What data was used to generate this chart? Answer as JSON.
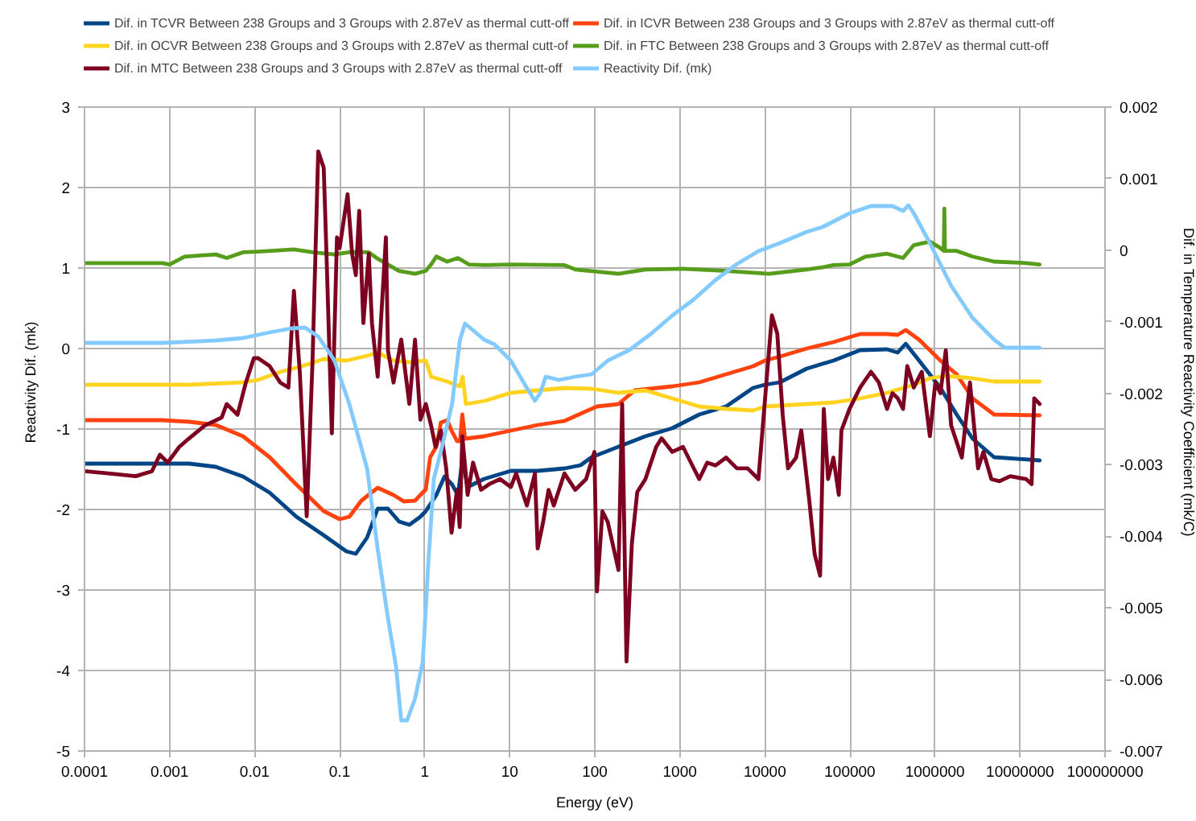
{
  "chart_data": {
    "type": "line",
    "xlabel": "Energy (eV)",
    "ylabel": "Reactivity Dif. (mk)",
    "y2label": "Dif. in Temperature Reactivity Coefficient (mk/C)",
    "log": "x",
    "grid": true,
    "legend": "top",
    "line_style": "solid",
    "xlim": [
      0.0001,
      100000000
    ],
    "xticks": [
      0.0001,
      0.001,
      0.01,
      0.1,
      1,
      10,
      100,
      1000,
      10000,
      100000,
      1000000,
      10000000,
      100000000
    ],
    "ylim": [
      -5,
      3
    ],
    "yticks": [
      -5,
      -4,
      -3,
      -2,
      -1,
      0,
      1,
      2,
      3
    ],
    "y2lim": [
      -0.007,
      0.002
    ],
    "y2ticks": [
      -0.007,
      -0.006,
      -0.005,
      -0.004,
      -0.003,
      -0.002,
      -0.001,
      0,
      0.001,
      0.002
    ],
    "series": [
      {
        "name": "Dif. in TCVR Between 238 Groups and 3 Groups with 2.87eV as thermal cutt-off",
        "color": "#004586",
        "x": [
          0.0001,
          0.0017,
          0.0035,
          0.0073,
          0.015,
          0.031,
          0.065,
          0.12,
          0.155,
          0.21,
          0.28,
          0.37,
          0.5,
          0.66,
          0.89,
          1.03,
          1.37,
          1.71,
          2.1,
          2.46,
          2.77,
          3.2,
          5,
          10.3,
          21.3,
          44,
          68,
          92,
          190,
          394,
          815,
          1690,
          3500,
          7260,
          10000,
          15000,
          31000,
          64000,
          132000,
          273000,
          365000,
          453000,
          651000,
          1160000,
          1800000,
          2770000,
          4950000,
          17000000
        ],
        "values": [
          -1.43,
          -1.43,
          -1.47,
          -1.59,
          -1.79,
          -2.09,
          -2.32,
          -2.52,
          -2.55,
          -2.35,
          -1.99,
          -1.99,
          -2.15,
          -2.19,
          -2.09,
          -2.02,
          -1.82,
          -1.59,
          -1.69,
          -1.82,
          -1.39,
          -1.72,
          -1.62,
          -1.52,
          -1.52,
          -1.49,
          -1.45,
          -1.35,
          -1.22,
          -1.09,
          -0.99,
          -0.82,
          -0.72,
          -0.49,
          -0.45,
          -0.42,
          -0.25,
          -0.15,
          -0.02,
          -0.01,
          -0.05,
          0.06,
          -0.15,
          -0.49,
          -0.82,
          -1.12,
          -1.35,
          -1.39
        ]
      },
      {
        "name": "Dif. in ICVR Between 238 Groups and 3 Groups with 2.87eV as thermal cutt-off",
        "color": "#ff420e",
        "x": [
          0.0001,
          0.00082,
          0.0017,
          0.0035,
          0.0073,
          0.015,
          0.031,
          0.065,
          0.1,
          0.13,
          0.18,
          0.28,
          0.43,
          0.57,
          0.77,
          1.03,
          1.16,
          1.37,
          1.55,
          1.84,
          2.07,
          2.4,
          2.6,
          2.77,
          2.98,
          5,
          10.3,
          21.3,
          44,
          68,
          106,
          190,
          294,
          815,
          1690,
          3500,
          7260,
          10000,
          15000,
          31000,
          64000,
          132000,
          273000,
          365000,
          453000,
          651000,
          1160000,
          1800000,
          2770000,
          4950000,
          17000000
        ],
        "values": [
          -0.89,
          -0.89,
          -0.91,
          -0.95,
          -1.09,
          -1.35,
          -1.69,
          -2.02,
          -2.12,
          -2.09,
          -1.89,
          -1.73,
          -1.82,
          -1.9,
          -1.89,
          -1.75,
          -1.35,
          -1.22,
          -0.92,
          -0.89,
          -1.02,
          -1.15,
          -1.15,
          -0.82,
          -1.12,
          -1.09,
          -1.02,
          -0.95,
          -0.9,
          -0.81,
          -0.72,
          -0.69,
          -0.52,
          -0.47,
          -0.42,
          -0.32,
          -0.22,
          -0.15,
          -0.1,
          0.0,
          0.08,
          0.18,
          0.18,
          0.17,
          0.23,
          0.11,
          -0.15,
          -0.32,
          -0.62,
          -0.82,
          -0.83
        ]
      },
      {
        "name": "Dif. in OCVR Between 238 Groups and 3 Groups with 2.87eV as thermal cutt-of",
        "color": "#ffd320",
        "x": [
          0.0001,
          0.0017,
          0.0073,
          0.011,
          0.02,
          0.036,
          0.065,
          0.12,
          0.21,
          0.28,
          0.43,
          0.66,
          1.03,
          1.19,
          1.84,
          2.6,
          2.8,
          3.05,
          5.1,
          10.3,
          21.3,
          44,
          92,
          190,
          394,
          815,
          1690,
          3500,
          7260,
          10000,
          31000,
          64000,
          132000,
          273000,
          564000,
          871000,
          1340000,
          2770000,
          4950000,
          17000000
        ],
        "values": [
          -0.45,
          -0.45,
          -0.42,
          -0.39,
          -0.29,
          -0.22,
          -0.13,
          -0.15,
          -0.09,
          -0.05,
          -0.15,
          -0.17,
          -0.15,
          -0.35,
          -0.41,
          -0.47,
          -0.35,
          -0.69,
          -0.65,
          -0.55,
          -0.52,
          -0.49,
          -0.5,
          -0.55,
          -0.52,
          -0.62,
          -0.72,
          -0.75,
          -0.77,
          -0.72,
          -0.69,
          -0.67,
          -0.62,
          -0.55,
          -0.45,
          -0.37,
          -0.34,
          -0.37,
          -0.41,
          -0.41
        ]
      },
      {
        "name": "Dif. in FTC Between 238 Groups and 3 Groups with 2.87eV as thermal cutt-off",
        "color": "#579d1c",
        "axis": "y2",
        "x": [
          0.0001,
          0.00082,
          0.001,
          0.0015,
          0.0035,
          0.0047,
          0.0073,
          0.011,
          0.029,
          0.048,
          0.087,
          0.13,
          0.22,
          0.28,
          0.5,
          0.77,
          1.03,
          1.19,
          1.37,
          1.84,
          2.46,
          3.3,
          5.1,
          10.3,
          44,
          59,
          190,
          394,
          1090,
          3500,
          11200,
          31000,
          47900,
          64000,
          98800,
          153000,
          273000,
          422000,
          564000,
          871000,
          1160000,
          1270000,
          1290000,
          1310000,
          1800000,
          2770000,
          4950000,
          11800000,
          17000000
        ],
        "values": [
          -0.00018,
          -0.00018,
          -0.0002,
          -9e-05,
          -6e-05,
          -0.00011,
          -3e-05,
          -2e-05,
          1e-05,
          -3e-05,
          -6e-05,
          -3e-05,
          -3e-05,
          -0.00012,
          -0.00029,
          -0.00033,
          -0.00029,
          -0.0002,
          -9e-05,
          -0.00016,
          -0.00011,
          -0.0002,
          -0.00021,
          -0.0002,
          -0.00021,
          -0.00027,
          -0.00033,
          -0.00027,
          -0.00026,
          -0.00029,
          -0.00033,
          -0.00027,
          -0.00024,
          -0.00021,
          -0.0002,
          -9e-05,
          -5e-05,
          -0.00011,
          7e-05,
          0.00012,
          3e-05,
          -1e-05,
          0.00058,
          -1e-05,
          -1e-05,
          -9e-05,
          -0.00016,
          -0.00018,
          -0.0002
        ]
      },
      {
        "name": "Dif. in MTC Between 238 Groups and 3 Groups with 2.87eV as thermal cutt-off",
        "color": "#7e0021",
        "axis": "y2",
        "x": [
          0.0001,
          0.00019,
          0.0004,
          0.00062,
          0.00077,
          0.00095,
          0.0013,
          0.0017,
          0.0026,
          0.0041,
          0.0047,
          0.0063,
          0.0079,
          0.0098,
          0.011,
          0.015,
          0.02,
          0.025,
          0.029,
          0.034,
          0.041,
          0.048,
          0.056,
          0.065,
          0.07,
          0.081,
          0.093,
          0.1,
          0.124,
          0.14,
          0.155,
          0.17,
          0.19,
          0.22,
          0.24,
          0.28,
          0.35,
          0.37,
          0.43,
          0.53,
          0.66,
          0.77,
          0.89,
          1.03,
          1.19,
          1.34,
          1.55,
          1.79,
          2.07,
          2.4,
          2.58,
          2.77,
          3.2,
          3.7,
          4.6,
          5.75,
          7.7,
          10.3,
          11.9,
          15.9,
          19.8,
          21.3,
          24.7,
          28.6,
          33,
          44,
          59,
          79,
          99,
          106,
          123,
          142,
          190,
          210,
          236,
          273,
          316,
          394,
          527,
          610,
          815,
          1090,
          1690,
          2100,
          2620,
          3500,
          4690,
          6270,
          8400,
          9700,
          12100,
          14000,
          16200,
          18700,
          23300,
          26800,
          33300,
          38500,
          44600,
          49300,
          55300,
          64000,
          74000,
          79500,
          98800,
          132000,
          177000,
          219000,
          273000,
          316000,
          365000,
          422000,
          473000,
          564000,
          700000,
          871000,
          1010000,
          1160000,
          1340000,
          1550000,
          2070000,
          2580000,
          3210000,
          3710000,
          4610000,
          5730000,
          7660000,
          11800000,
          13700000,
          14700000,
          17000000
        ],
        "values": [
          -0.00309,
          -0.00312,
          -0.00316,
          -0.00309,
          -0.00286,
          -0.00297,
          -0.00275,
          -0.00263,
          -0.00245,
          -0.00234,
          -0.00215,
          -0.0023,
          -0.00185,
          -0.00151,
          -0.00151,
          -0.00162,
          -0.00185,
          -0.00192,
          -0.00057,
          -0.0017,
          -0.00372,
          -0.00155,
          0.00138,
          0.00115,
          -5e-05,
          -0.00256,
          0.00018,
          3e-05,
          0.00078,
          -5e-05,
          -0.00035,
          0.00055,
          -0.00102,
          -5e-05,
          -0.00102,
          -0.00177,
          0.00018,
          -0.0014,
          -0.00185,
          -0.00125,
          -0.00215,
          -0.00125,
          -0.00237,
          -0.00215,
          -0.00245,
          -0.00275,
          -0.00252,
          -0.00305,
          -0.00395,
          -0.00335,
          -0.00387,
          -0.0026,
          -0.00342,
          -0.00297,
          -0.00335,
          -0.00327,
          -0.0032,
          -0.00331,
          -0.00312,
          -0.00357,
          -0.00312,
          -0.00417,
          -0.0038,
          -0.00335,
          -0.00357,
          -0.00312,
          -0.00335,
          -0.0032,
          -0.00282,
          -0.00477,
          -0.00365,
          -0.0038,
          -0.00447,
          -0.00215,
          -0.00575,
          -0.0041,
          -0.00338,
          -0.0032,
          -0.00275,
          -0.00263,
          -0.00282,
          -0.00275,
          -0.0032,
          -0.00297,
          -0.00301,
          -0.0029,
          -0.00305,
          -0.00305,
          -0.0032,
          -0.0023,
          -0.00091,
          -0.00117,
          -0.0023,
          -0.00305,
          -0.0029,
          -0.00252,
          -0.0035,
          -0.00425,
          -0.00455,
          -0.00222,
          -0.0032,
          -0.0029,
          -0.00342,
          -0.00252,
          -0.00222,
          -0.00192,
          -0.0017,
          -0.00185,
          -0.00222,
          -0.002,
          -0.00207,
          -0.00222,
          -0.00162,
          -0.00192,
          -0.0017,
          -0.0026,
          -0.00185,
          -0.002,
          -0.0014,
          -0.00245,
          -0.0029,
          -0.00185,
          -0.00305,
          -0.00282,
          -0.0032,
          -0.00323,
          -0.00316,
          -0.0032,
          -0.00327,
          -0.00207,
          -0.00215
        ]
      },
      {
        "name": "Reactivity Dif. (mk)",
        "color": "#83caff",
        "x": [
          0.0001,
          0.00082,
          0.0035,
          0.0073,
          0.015,
          0.027,
          0.039,
          0.056,
          0.087,
          0.13,
          0.21,
          0.28,
          0.37,
          0.46,
          0.53,
          0.62,
          0.77,
          0.95,
          1.1,
          1.28,
          1.6,
          2.1,
          2.6,
          2.98,
          5,
          6.65,
          10.3,
          15.9,
          19.8,
          22.9,
          26.5,
          38,
          59,
          92,
          142,
          254,
          455,
          815,
          1460,
          2620,
          4690,
          8400,
          15000,
          31200,
          47900,
          98800,
          177000,
          316000,
          422000,
          487000,
          564000,
          871000,
          1550000,
          2770000,
          4950000,
          6620000,
          17000000
        ],
        "values": [
          0.07,
          0.07,
          0.1,
          0.13,
          0.2,
          0.25,
          0.26,
          0.15,
          -0.15,
          -0.69,
          -1.49,
          -2.49,
          -3.35,
          -3.95,
          -4.62,
          -4.62,
          -4.35,
          -3.89,
          -2.69,
          -1.62,
          -1.22,
          -0.69,
          0.11,
          0.31,
          0.11,
          0.05,
          -0.15,
          -0.49,
          -0.65,
          -0.55,
          -0.35,
          -0.39,
          -0.35,
          -0.32,
          -0.15,
          -0.02,
          0.18,
          0.41,
          0.61,
          0.85,
          1.05,
          1.21,
          1.31,
          1.45,
          1.51,
          1.68,
          1.77,
          1.77,
          1.71,
          1.78,
          1.68,
          1.31,
          0.78,
          0.38,
          0.11,
          0.01,
          0.01
        ]
      }
    ]
  }
}
